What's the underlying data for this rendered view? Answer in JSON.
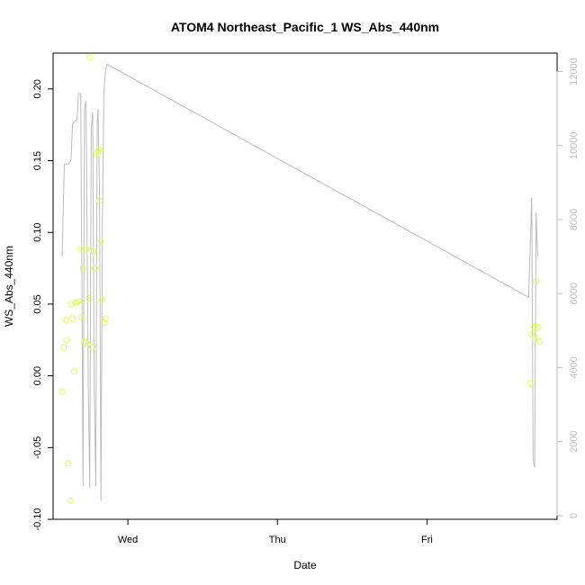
{
  "chart_data": {
    "type": "scatter",
    "title": "ATOM4 Northeast_Pacific_1 WS_Abs_440nm",
    "xlabel": "Date",
    "ylabel": "WS_Abs_440nm",
    "x_ticks": [
      {
        "label": "Wed",
        "value": 1.0
      },
      {
        "label": "Thu",
        "value": 2.0
      },
      {
        "label": "Fri",
        "value": 3.0
      }
    ],
    "xlim": [
      0.5,
      3.87
    ],
    "ylim": [
      -0.1,
      0.225
    ],
    "y_ticks": [
      -0.1,
      -0.05,
      0.0,
      0.05,
      0.1,
      0.15,
      0.2
    ],
    "y_tick_labels": [
      "-0.10",
      "-0.05",
      "0.00",
      "0.05",
      "0.10",
      "0.15",
      "0.20"
    ],
    "y2lim": [
      -100,
      12500
    ],
    "y2_ticks": [
      0,
      2000,
      4000,
      6000,
      8000,
      10000,
      12000
    ],
    "y2_tick_labels": [
      "0",
      "2000",
      "4000",
      "6000",
      "8000",
      "10000",
      "12000"
    ],
    "grid": false,
    "series": [
      {
        "kind": "points",
        "color": "#ddff55",
        "points": [
          [
            0.56,
            -0.011
          ],
          [
            0.57,
            0.02
          ],
          [
            0.585,
            0.039
          ],
          [
            0.59,
            0.025
          ],
          [
            0.6,
            -0.061
          ],
          [
            0.615,
            -0.087
          ],
          [
            0.62,
            0.05
          ],
          [
            0.63,
            0.04
          ],
          [
            0.64,
            0.003
          ],
          [
            0.65,
            0.051
          ],
          [
            0.66,
            0.051
          ],
          [
            0.67,
            0.052
          ],
          [
            0.68,
            0.089
          ],
          [
            0.69,
            0.041
          ],
          [
            0.7,
            0.075
          ],
          [
            0.71,
            0.024
          ],
          [
            0.72,
            0.088
          ],
          [
            0.73,
            0.022
          ],
          [
            0.74,
            0.054
          ],
          [
            0.745,
            0.222
          ],
          [
            0.76,
            0.02
          ],
          [
            0.77,
            0.087
          ],
          [
            0.78,
            0.075
          ],
          [
            0.79,
            0.154
          ],
          [
            0.8,
            0.156
          ],
          [
            0.805,
            0.158
          ],
          [
            0.81,
            0.122
          ],
          [
            0.82,
            0.094
          ],
          [
            0.825,
            0.053
          ],
          [
            0.84,
            0.037
          ],
          [
            0.85,
            0.04
          ],
          [
            3.69,
            -0.005
          ],
          [
            3.7,
            0.029
          ],
          [
            3.715,
            0.034
          ],
          [
            3.72,
            0.027
          ],
          [
            3.73,
            0.066
          ],
          [
            3.74,
            0.034
          ],
          [
            3.75,
            0.024
          ]
        ]
      },
      {
        "kind": "line",
        "axis": "right",
        "color": "#bbbbbb",
        "points": [
          [
            0.56,
            7000
          ],
          [
            0.575,
            9500
          ],
          [
            0.6,
            9500
          ],
          [
            0.62,
            9600
          ],
          [
            0.63,
            10600
          ],
          [
            0.66,
            10700
          ],
          [
            0.67,
            11400
          ],
          [
            0.685,
            11400
          ],
          [
            0.69,
            8000
          ],
          [
            0.7,
            800
          ],
          [
            0.71,
            11000
          ],
          [
            0.72,
            11200
          ],
          [
            0.735,
            3500
          ],
          [
            0.745,
            750
          ],
          [
            0.755,
            10500
          ],
          [
            0.765,
            10900
          ],
          [
            0.775,
            3500
          ],
          [
            0.785,
            800
          ],
          [
            0.795,
            10600
          ],
          [
            0.8,
            11000
          ],
          [
            0.81,
            9000
          ],
          [
            0.82,
            400
          ],
          [
            0.83,
            8000
          ],
          [
            0.84,
            11500
          ],
          [
            0.85,
            12000
          ],
          [
            0.86,
            12200
          ],
          [
            3.68,
            5900
          ],
          [
            3.7,
            8600
          ],
          [
            3.71,
            1500
          ],
          [
            3.72,
            1300
          ],
          [
            3.73,
            8200
          ],
          [
            3.74,
            7000
          ]
        ]
      }
    ]
  }
}
